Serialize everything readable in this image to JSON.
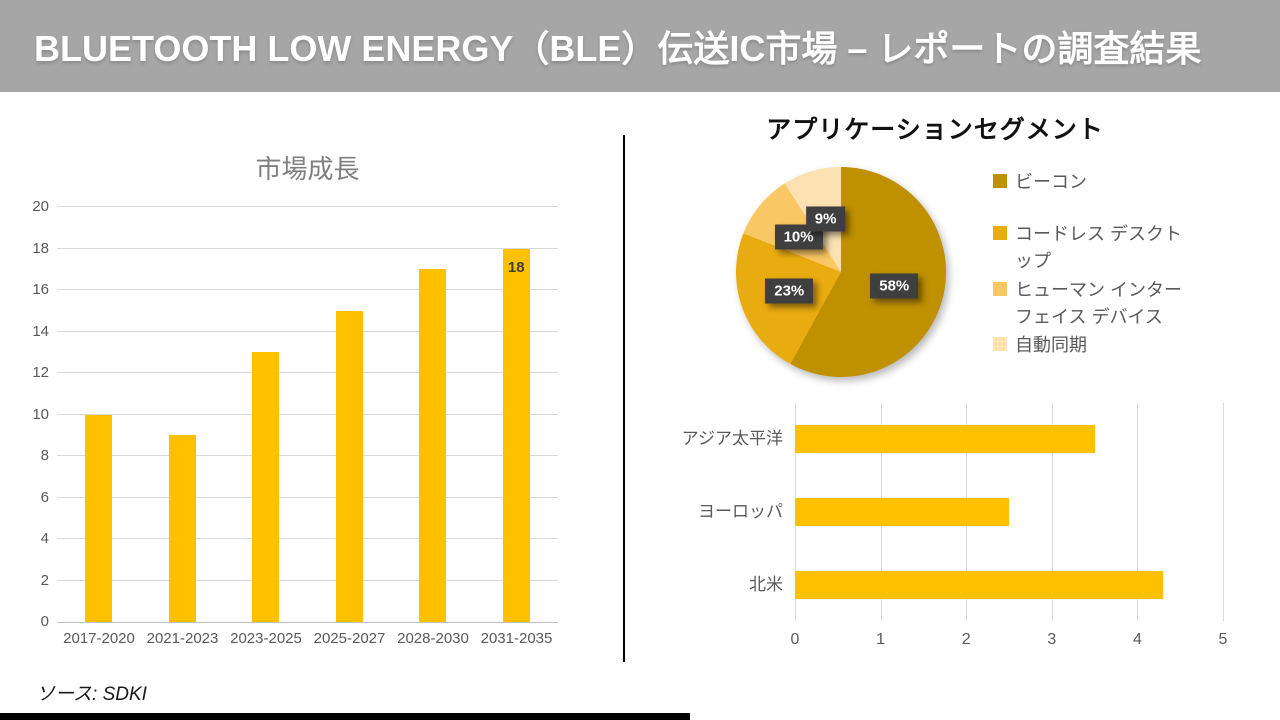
{
  "header": {
    "title": "BLUETOOTH LOW ENERGY（BLE）伝送IC市場 – レポートの調査結果"
  },
  "source": {
    "label": "ソース: SDKI"
  },
  "theme": {
    "header_bg": "#A6A6A6",
    "accent": "#FFC000",
    "axis_text": "#595959",
    "grid_line": "#D9D9D9",
    "label_box": "#3F3F3F",
    "title_gray": "#7F7F7F",
    "divider": "#000000"
  },
  "chart_data": [
    {
      "type": "bar",
      "orientation": "vertical",
      "title": "市場成長",
      "categories": [
        "2017-2020",
        "2021-2023",
        "2023-2025",
        "2025-2027",
        "2028-2030",
        "2031-2035"
      ],
      "values": [
        10,
        9,
        13,
        15,
        17,
        18
      ],
      "value_labels": [
        "",
        "",
        "",
        "",
        "",
        "18"
      ],
      "ylim": [
        0,
        20
      ],
      "yticks": [
        0,
        2,
        4,
        6,
        8,
        10,
        12,
        14,
        16,
        18,
        20
      ],
      "bar_color": "#FFC000",
      "grid": "horizontal",
      "legend_position": "none"
    },
    {
      "type": "pie",
      "title": "アプリケーションセグメント",
      "start_angle_deg": 0,
      "direction": "clockwise",
      "slices": [
        {
          "label": "ビーコン",
          "value": 58,
          "pct_label": "58%",
          "color": "#BF9000"
        },
        {
          "label": "コードレス デスクトップ",
          "value": 23,
          "pct_label": "23%",
          "color": "#E9AC10"
        },
        {
          "label": "ヒューマン インターフェイス デバイス",
          "value": 10,
          "pct_label": "10%",
          "color": "#F9C763"
        },
        {
          "label": "自動同期",
          "value": 9,
          "pct_label": "9%",
          "color": "#FCE2B3"
        }
      ],
      "legend_position": "right"
    },
    {
      "type": "bar",
      "orientation": "horizontal",
      "title": "",
      "categories": [
        "アジア太平洋",
        "ヨーロッパ",
        "北米"
      ],
      "values": [
        3.5,
        2.5,
        4.3
      ],
      "xlim": [
        0,
        5
      ],
      "xticks": [
        0,
        1,
        2,
        3,
        4,
        5
      ],
      "bar_color": "#FFC000",
      "grid": "vertical",
      "legend_position": "none"
    }
  ]
}
